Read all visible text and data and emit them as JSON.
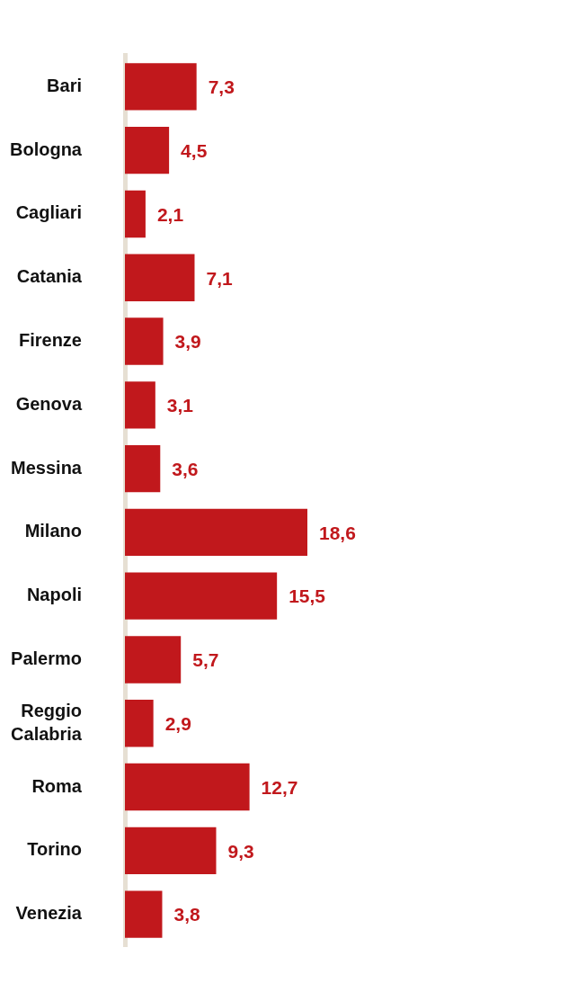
{
  "chart_data": {
    "type": "bar",
    "orientation": "horizontal",
    "categories": [
      "Bari",
      "Bologna",
      "Cagliari",
      "Catania",
      "Firenze",
      "Genova",
      "Messina",
      "Milano",
      "Napoli",
      "Palermo",
      "Reggio Calabria",
      "Roma",
      "Torino",
      "Venezia"
    ],
    "values": [
      7.3,
      4.5,
      2.1,
      7.1,
      3.9,
      3.1,
      3.6,
      18.6,
      15.5,
      5.7,
      2.9,
      12.7,
      9.3,
      3.8
    ],
    "color": "#c1181c",
    "value_labels": [
      "7,3",
      "4,5",
      "2,1",
      "7,1",
      "3,9",
      "3,1",
      "3,6",
      "18,6",
      "15,5",
      "5,7",
      "2,9",
      "12,7",
      "9,3",
      "3,8"
    ],
    "tick_labels": "y"
  }
}
